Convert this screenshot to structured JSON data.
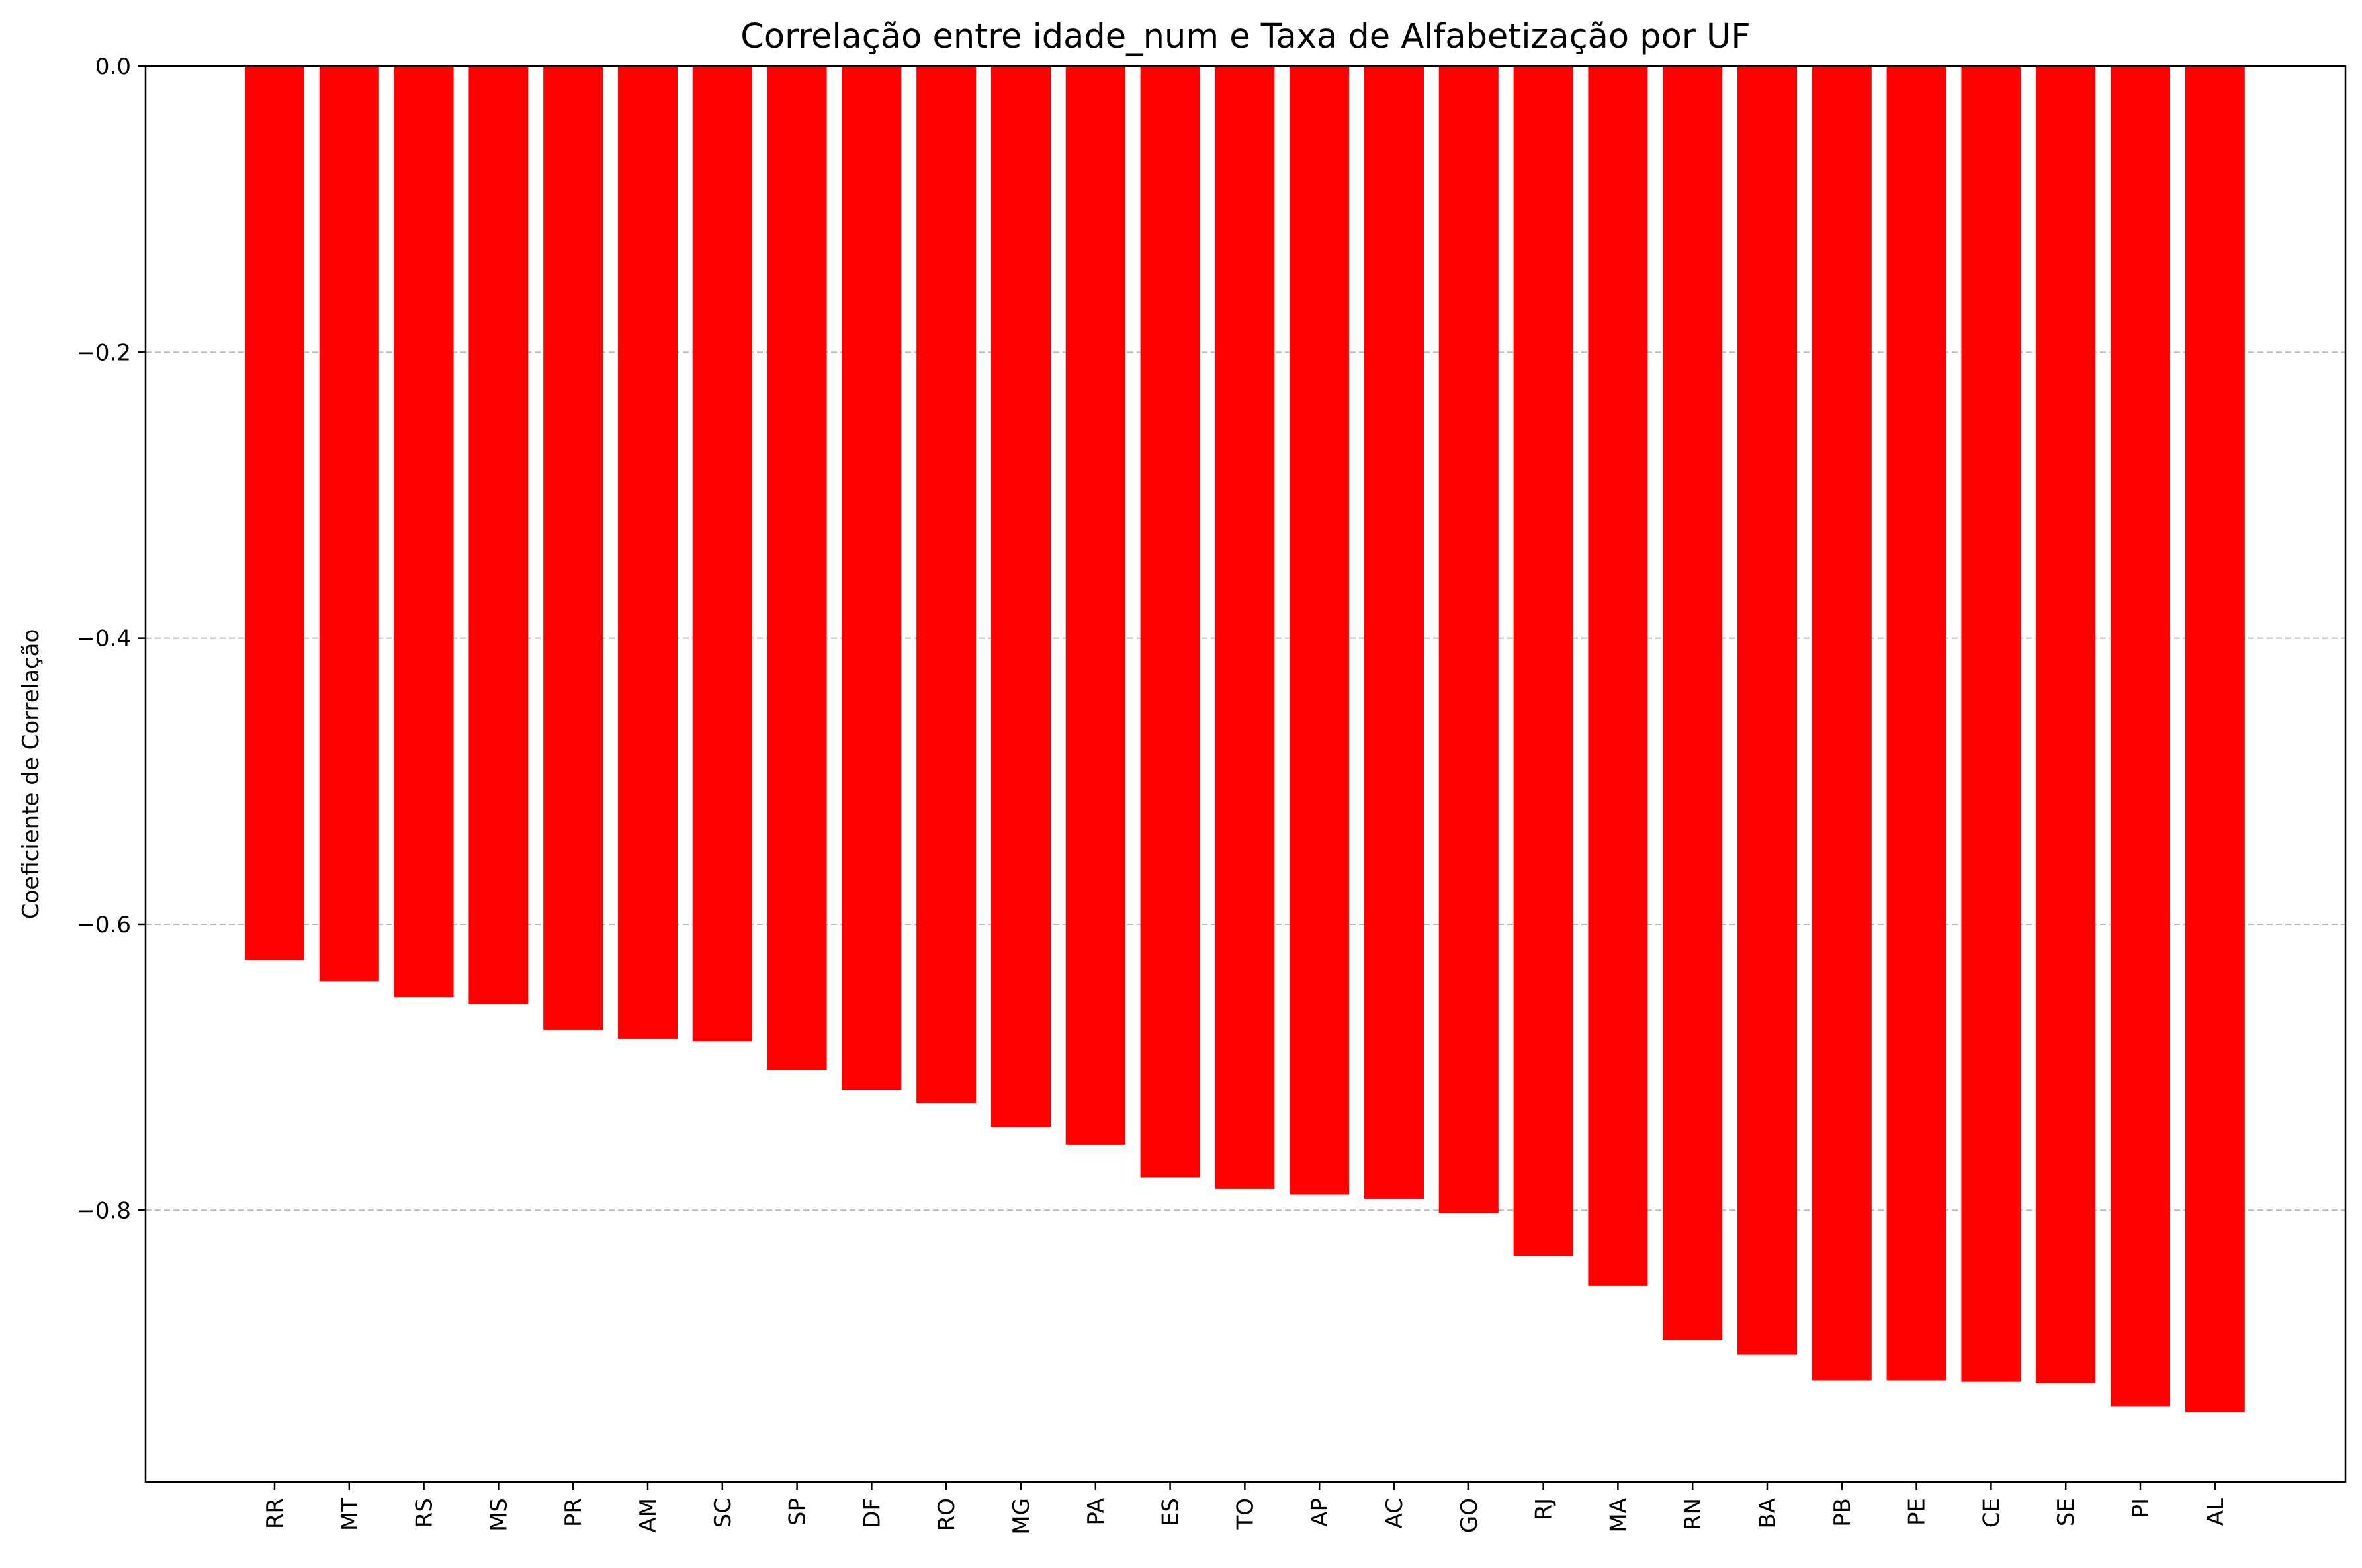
{
  "chart_data": {
    "type": "bar",
    "title": "Correlação entre idade_num e Taxa de Alfabetização por UF",
    "xlabel": "",
    "ylabel": "Coeficiente de Correlação",
    "categories": [
      "RR",
      "MT",
      "RS",
      "MS",
      "PR",
      "AM",
      "SC",
      "SP",
      "DF",
      "RO",
      "MG",
      "PA",
      "ES",
      "TO",
      "AP",
      "AC",
      "GO",
      "RJ",
      "MA",
      "RN",
      "BA",
      "PB",
      "PE",
      "CE",
      "SE",
      "PI",
      "AL"
    ],
    "values": [
      -0.625,
      -0.64,
      -0.651,
      -0.656,
      -0.674,
      -0.68,
      -0.682,
      -0.702,
      -0.716,
      -0.725,
      -0.742,
      -0.754,
      -0.777,
      -0.785,
      -0.789,
      -0.792,
      -0.802,
      -0.832,
      -0.853,
      -0.891,
      -0.901,
      -0.919,
      -0.919,
      -0.92,
      -0.921,
      -0.937,
      -0.941
    ],
    "ylim": [
      -0.99,
      0.0
    ],
    "yticks": [
      "0.0",
      "−0.2",
      "−0.4",
      "−0.6",
      "−0.8"
    ],
    "ytick_values": [
      0.0,
      -0.2,
      -0.4,
      -0.6,
      -0.8
    ],
    "bar_color": "#ff0000",
    "grid": "y-dashed",
    "legend": "none"
  }
}
